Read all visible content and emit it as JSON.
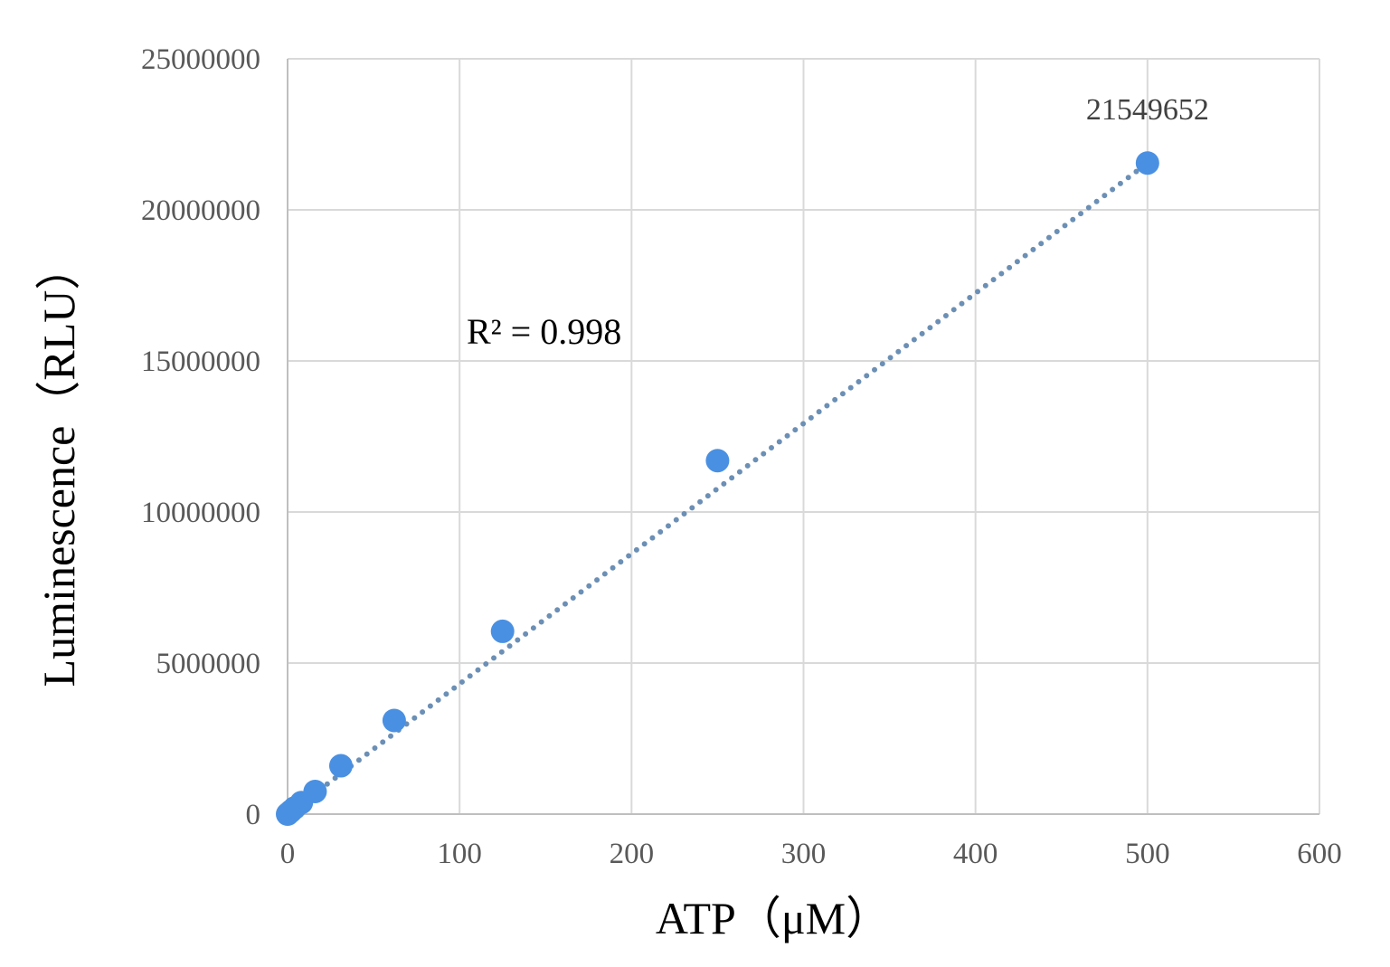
{
  "chart_data": {
    "type": "scatter",
    "xlabel": "ATP（μM）",
    "ylabel": "Luminescence（RLU）",
    "xlim": [
      0,
      600
    ],
    "ylim": [
      0,
      25000000
    ],
    "x_ticks": [
      "0",
      "100",
      "200",
      "300",
      "400",
      "500",
      "600"
    ],
    "y_ticks": [
      "0",
      "5000000",
      "10000000",
      "15000000",
      "20000000",
      "25000000"
    ],
    "grid": true,
    "series": [
      {
        "color": "#4a90e2",
        "points": [
          {
            "x": 0,
            "y": 0
          },
          {
            "x": 1,
            "y": 50000
          },
          {
            "x": 2,
            "y": 100000
          },
          {
            "x": 4,
            "y": 200000
          },
          {
            "x": 8,
            "y": 380000
          },
          {
            "x": 16,
            "y": 750000
          },
          {
            "x": 31,
            "y": 1600000
          },
          {
            "x": 62,
            "y": 3100000
          },
          {
            "x": 125,
            "y": 6050000
          },
          {
            "x": 250,
            "y": 11700000
          },
          {
            "x": 500,
            "y": 21549652
          }
        ]
      }
    ],
    "trendline": {
      "style": "dotted",
      "color": "#6b8fb5",
      "x": [
        0,
        500
      ],
      "y": [
        0,
        21549652
      ]
    },
    "data_label": {
      "x": 500,
      "y": 21549652,
      "text": "21549652"
    },
    "annotation": "R² = 0.998"
  }
}
